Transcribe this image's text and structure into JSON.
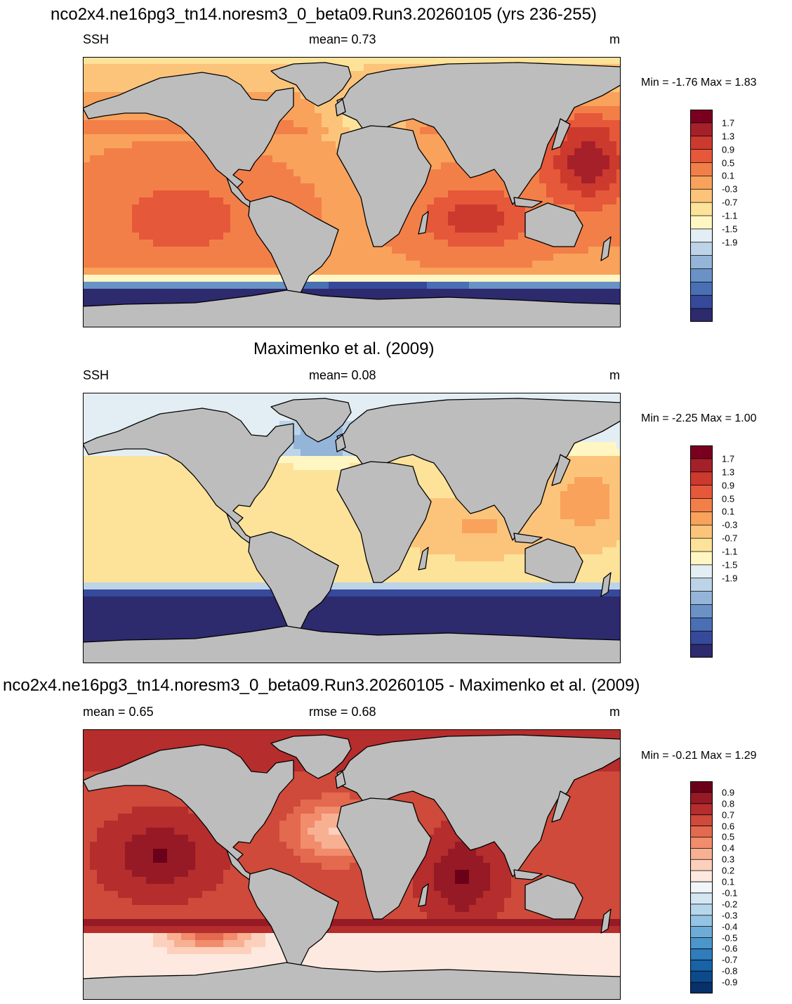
{
  "panels": [
    {
      "title": "nco2x4.ne16pg3_tn14.noresm3_0_beta09.Run3.20260105 (yrs 236-255)",
      "left_label": "SSH",
      "center_label": "mean=   0.73",
      "units": "m",
      "minmax": "Min =  -1.76 Max =   1.83",
      "colorbar_labels": [
        "1.7",
        "1.3",
        "0.9",
        "0.5",
        "0.1",
        "-0.3",
        "-0.7",
        "-1.1",
        "-1.5",
        "-1.9"
      ],
      "colorbar_colors": [
        "#2e2a6e",
        "#36499b",
        "#4a6fb5",
        "#6a92c6",
        "#94b5d8",
        "#bdd4e8",
        "#e3eef4",
        "#fff6c4",
        "#fde39a",
        "#fcc47a",
        "#f9a25c",
        "#f37f48",
        "#e6583a",
        "#cc3a2e",
        "#a6202a",
        "#7a0020"
      ],
      "field": "model",
      "cmap": "ssh"
    },
    {
      "title": "Maximenko et al. (2009)",
      "left_label": "SSH",
      "center_label": "mean=   0.08",
      "units": "m",
      "minmax": "Min =  -2.25 Max =   1.00",
      "colorbar_labels": [
        "1.7",
        "1.3",
        "0.9",
        "0.5",
        "0.1",
        "-0.3",
        "-0.7",
        "-1.1",
        "-1.5",
        "-1.9"
      ],
      "colorbar_colors": [
        "#2e2a6e",
        "#36499b",
        "#4a6fb5",
        "#6a92c6",
        "#94b5d8",
        "#bdd4e8",
        "#e3eef4",
        "#fff6c4",
        "#fde39a",
        "#fcc47a",
        "#f9a25c",
        "#f37f48",
        "#e6583a",
        "#cc3a2e",
        "#a6202a",
        "#7a0020"
      ],
      "field": "obs",
      "cmap": "ssh"
    },
    {
      "title": "nco2x4.ne16pg3_tn14.noresm3_0_beta09.Run3.20260105 - Maximenko et al. (2009)",
      "left_label": "mean =    0.65",
      "center_label": "rmse =    0.68",
      "units": "m",
      "minmax": "Min =  -0.21 Max =   1.29",
      "colorbar_labels": [
        "0.9",
        "0.8",
        "0.7",
        "0.6",
        "0.5",
        "0.4",
        "0.3",
        "0.2",
        "0.1",
        "-0.1",
        "-0.2",
        "-0.3",
        "-0.4",
        "-0.5",
        "-0.6",
        "-0.7",
        "-0.8",
        "-0.9"
      ],
      "colorbar_colors": [
        "#08306b",
        "#0c4a8c",
        "#1863a8",
        "#2f7dbd",
        "#4b96cb",
        "#6eacd8",
        "#94c3e3",
        "#b6d6ec",
        "#d5e6f3",
        "#f1f6fa",
        "#fde9df",
        "#fcd0bc",
        "#f8b092",
        "#f18c6c",
        "#e3694f",
        "#cf4a3a",
        "#b52d2c",
        "#961a25",
        "#6b0019"
      ],
      "field": "diff",
      "cmap": "diff"
    }
  ],
  "colors": {
    "land": "#bdbdbd",
    "coast": "#000000"
  }
}
